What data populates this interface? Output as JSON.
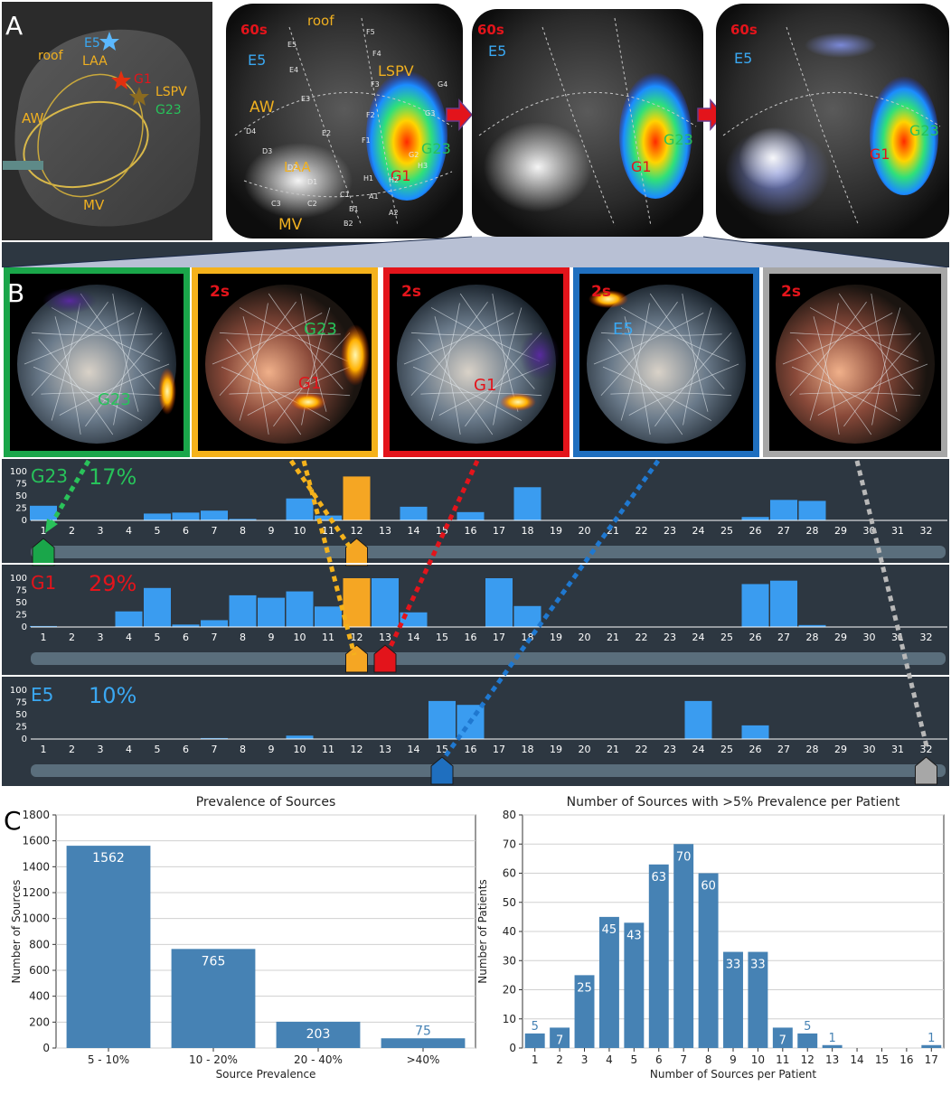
{
  "panel_letters": {
    "a": "A",
    "b": "B",
    "c": "C"
  },
  "panel_a": {
    "atlas_labels": {
      "roof": "roof",
      "e5": "E5",
      "laa": "LAA",
      "g1": "G1",
      "lspv": "LSPV",
      "g23": "G23",
      "aw": "AW",
      "mv": "MV"
    },
    "map1": {
      "time": "60s",
      "roof": "roof",
      "e5": "E5",
      "lspv": "LSPV",
      "aw": "AW",
      "g23": "G23",
      "laa": "LAA",
      "g1": "G1",
      "mv": "MV"
    },
    "map2": {
      "time": "60s",
      "e5": "E5",
      "g23": "G23",
      "g1": "G1"
    },
    "map3": {
      "time": "60s",
      "e5": "E5",
      "g23": "G23",
      "g1": "G1"
    },
    "electrode_labels": [
      "F5",
      "F4",
      "F3",
      "F2",
      "F1",
      "E5",
      "E4",
      "E3",
      "E2",
      "D4",
      "D3",
      "D2",
      "D1",
      "C3",
      "C2",
      "C1",
      "B1",
      "B2",
      "A1",
      "A2",
      "G2",
      "G3",
      "G4",
      "H1",
      "H2",
      "H3"
    ]
  },
  "panel_b": {
    "frames": [
      {
        "time": "",
        "source": "G23",
        "border": "#1aa64a"
      },
      {
        "time": "2s",
        "source": "G23",
        "source2": "G1",
        "border": "#f5b21b"
      },
      {
        "time": "2s",
        "source": "G1",
        "border": "#e3141b"
      },
      {
        "time": "2s",
        "source": "E5",
        "border": "#1f6fbf"
      },
      {
        "time": "2s",
        "source": "",
        "border": "#a7a7a7"
      }
    ]
  },
  "timelines": {
    "x_ticks": [
      "1",
      "2",
      "3",
      "4",
      "5",
      "6",
      "7",
      "8",
      "9",
      "10",
      "11",
      "12",
      "13",
      "14",
      "15",
      "16",
      "17",
      "18",
      "19",
      "20",
      "21",
      "22",
      "23",
      "24",
      "25",
      "26",
      "27",
      "28",
      "29",
      "30",
      "31",
      "32"
    ],
    "y_ticks": [
      "100",
      "75",
      "50",
      "25",
      "0"
    ],
    "rows": [
      {
        "name": "G23",
        "pct": "17%",
        "name_color": "#27c25a",
        "pct_color": "#27c25a",
        "values": [
          30,
          0,
          0,
          0,
          14,
          16,
          20,
          3,
          0,
          45,
          10,
          90,
          0,
          28,
          0,
          17,
          0,
          68,
          0,
          0,
          0,
          0,
          0,
          0,
          0,
          7,
          42,
          40,
          0,
          0,
          0,
          0
        ],
        "highlight": 12,
        "markers": [
          {
            "pos": 1,
            "color": "#1aa64a"
          },
          {
            "pos": 12,
            "color": "#f5a623"
          }
        ]
      },
      {
        "name": "G1",
        "pct": "29%",
        "name_color": "#e3141b",
        "pct_color": "#e3141b",
        "values": [
          2,
          0,
          0,
          32,
          80,
          5,
          14,
          65,
          60,
          73,
          42,
          100,
          100,
          30,
          0,
          0,
          100,
          43,
          0,
          0,
          0,
          0,
          0,
          0,
          0,
          88,
          95,
          4,
          0,
          0,
          0,
          0
        ],
        "highlight": 12,
        "markers": [
          {
            "pos": 12,
            "color": "#f5a623"
          },
          {
            "pos": 13,
            "color": "#e3141b"
          }
        ]
      },
      {
        "name": "E5",
        "pct": "10%",
        "name_color": "#3aa8f2",
        "pct_color": "#3aa8f2",
        "values": [
          0,
          0,
          0,
          0,
          0,
          0,
          2,
          0,
          0,
          7,
          0,
          0,
          0,
          0,
          78,
          70,
          0,
          0,
          0,
          0,
          0,
          0,
          0,
          78,
          0,
          28,
          0,
          0,
          0,
          0,
          0,
          0
        ],
        "highlight": 0,
        "markers": [
          {
            "pos": 15,
            "color": "#1f6fbf"
          },
          {
            "pos": 32,
            "color": "#a7a7a7"
          }
        ]
      }
    ]
  },
  "chart_data": [
    {
      "type": "bar",
      "title": "Prevalence of Sources",
      "xlabel": "Source Prevalence",
      "ylabel": "Number of Sources",
      "categories": [
        "5 - 10%",
        "10 - 20%",
        "20 - 40%",
        ">40%"
      ],
      "values": [
        1562,
        765,
        203,
        75
      ],
      "value_labels": [
        "1562",
        "765",
        "203",
        "75"
      ],
      "ylim": [
        0,
        1800
      ],
      "yticks": [
        "0",
        "200",
        "400",
        "600",
        "800",
        "1000",
        "1200",
        "1400",
        "1600",
        "1800"
      ],
      "grid": true,
      "bar_color": "#4682b4"
    },
    {
      "type": "bar",
      "title": "Number of Sources with >5% Prevalence per Patient",
      "xlabel": "Number of Sources per Patient",
      "ylabel": "Number of Patients",
      "categories": [
        "1",
        "2",
        "3",
        "4",
        "5",
        "6",
        "7",
        "8",
        "9",
        "10",
        "11",
        "12",
        "13",
        "14",
        "15",
        "16",
        "17"
      ],
      "values": [
        5,
        7,
        25,
        45,
        43,
        63,
        70,
        60,
        33,
        33,
        7,
        5,
        1,
        0,
        0,
        0,
        1
      ],
      "value_labels": [
        "5",
        "7",
        "25",
        "45",
        "43",
        "63",
        "70",
        "60",
        "33",
        "33",
        "7",
        "5",
        "1",
        "",
        "",
        "",
        "1"
      ],
      "ylim": [
        0,
        80
      ],
      "yticks": [
        "0",
        "10",
        "20",
        "30",
        "40",
        "50",
        "60",
        "70",
        "80"
      ],
      "grid": true,
      "bar_color": "#4682b4"
    }
  ]
}
